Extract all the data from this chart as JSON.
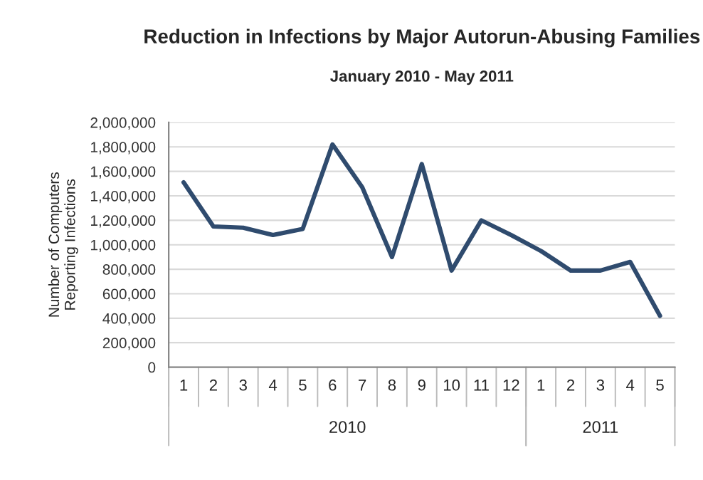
{
  "chart_data": {
    "type": "line",
    "title": "Reduction in Infections by Major Autorun-Abusing Families",
    "subtitle": "January 2010 - May 2011",
    "ylabel": "Number of Computers\nReporting Infections",
    "categories": [
      "1",
      "2",
      "3",
      "4",
      "5",
      "6",
      "7",
      "8",
      "9",
      "10",
      "11",
      "12",
      "1",
      "2",
      "3",
      "4",
      "5"
    ],
    "series": [
      {
        "color": "#2f4b6e",
        "values": [
          1510000,
          1150000,
          1140000,
          1080000,
          1130000,
          1820000,
          1470000,
          900000,
          1660000,
          790000,
          1200000,
          1080000,
          950000,
          790000,
          790000,
          860000,
          420000
        ]
      }
    ],
    "annotations": [
      "2010",
      "2011"
    ],
    "ylim": [
      0,
      2000000
    ],
    "yticks": [
      {
        "value": 0,
        "label": "0"
      },
      {
        "value": 200000,
        "label": "200,000"
      },
      {
        "value": 400000,
        "label": "400,000"
      },
      {
        "value": 600000,
        "label": "600,000"
      },
      {
        "value": 800000,
        "label": "800,000"
      },
      {
        "value": 1000000,
        "label": "1,000,000"
      },
      {
        "value": 1200000,
        "label": "1,200,000"
      },
      {
        "value": 1400000,
        "label": "1,400,000"
      },
      {
        "value": 1600000,
        "label": "1,600,000"
      },
      {
        "value": 1800000,
        "label": "1,800,000"
      },
      {
        "value": 2000000,
        "label": "2,000,000"
      }
    ],
    "grid": "y",
    "marker": "none",
    "line_style": "solid"
  }
}
